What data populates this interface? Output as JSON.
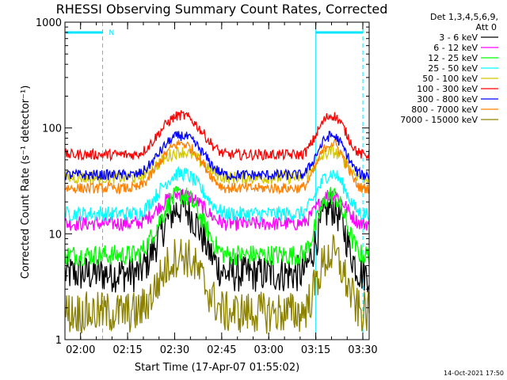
{
  "chart_data": {
    "type": "line",
    "title": "RHESSI Observing Summary Count Rates, Corrected",
    "xlabel": "Start Time (17-Apr-07 01:55:02)",
    "ylabel": "Corrected Count Rate (s⁻¹ detector⁻¹)",
    "y_scale": "log",
    "ylim": [
      1,
      1000
    ],
    "xlim_minutes": [
      0,
      97
    ],
    "x_tick_labels": [
      "02:00",
      "02:15",
      "02:30",
      "02:45",
      "03:00",
      "03:15",
      "03:30"
    ],
    "x_tick_minutes": [
      4.97,
      19.97,
      34.97,
      49.97,
      64.97,
      79.97,
      94.97
    ],
    "y_tick_labels": [
      "1",
      "10",
      "100",
      "1000"
    ],
    "y_tick_values": [
      1,
      10,
      100,
      1000
    ],
    "legend_header": [
      "Det 1,3,4,5,6,9,",
      "Att 0"
    ],
    "series": [
      {
        "name": "3 - 6 keV",
        "color": "#000000",
        "base": 4.2,
        "amp_ratio": 4.2,
        "noise": 0.18
      },
      {
        "name": "6 - 12 keV",
        "color": "#ff00ff",
        "base": 12.5,
        "amp_ratio": 1.9,
        "noise": 0.07
      },
      {
        "name": "12 - 25 keV",
        "color": "#00ff00",
        "base": 6.3,
        "amp_ratio": 3.7,
        "noise": 0.1
      },
      {
        "name": "25 - 50 keV",
        "color": "#00ffff",
        "base": 15.5,
        "amp_ratio": 2.4,
        "noise": 0.07
      },
      {
        "name": "50 - 100 keV",
        "color": "#d2c800",
        "base": 34,
        "amp_ratio": 1.75,
        "noise": 0.06
      },
      {
        "name": "100 - 300 keV",
        "color": "#ff0000",
        "base": 56,
        "amp_ratio": 2.35,
        "noise": 0.05
      },
      {
        "name": "300 - 800 keV",
        "color": "#0000ff",
        "base": 36,
        "amp_ratio": 2.35,
        "noise": 0.05
      },
      {
        "name": "800 - 7000 keV",
        "color": "#ff8000",
        "base": 27,
        "amp_ratio": 2.65,
        "noise": 0.05
      },
      {
        "name": "7000 - 15000 keV",
        "color": "#8c8200",
        "base": 1.8,
        "amp_ratio": 3.5,
        "noise": 0.2
      }
    ],
    "peaks": [
      {
        "center_minutes": 37,
        "half_width_minutes": 15
      },
      {
        "center_minutes": 85,
        "half_width_minutes": 10
      }
    ],
    "night_intervals_minutes": [
      [
        -2,
        12
      ],
      [
        80,
        95
      ]
    ],
    "flag_label": "N",
    "timestamp": "14-Oct-2021 17:50"
  }
}
